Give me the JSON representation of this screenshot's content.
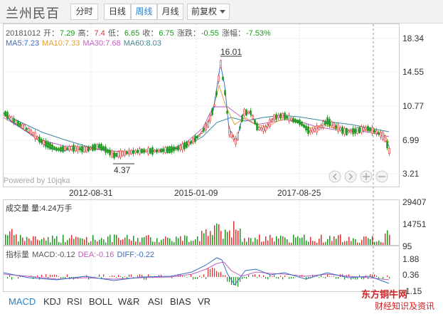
{
  "header": {
    "stock_name": "兰州民百",
    "periods": [
      {
        "label": "分时",
        "active": false
      },
      {
        "label": "日线",
        "active": false
      },
      {
        "label": "周线",
        "active": true
      },
      {
        "label": "月线",
        "active": false
      }
    ],
    "adjust_label": "前复权"
  },
  "quote": {
    "date": "20181012",
    "open_label": "开：",
    "open": "7.29",
    "high_label": "高：",
    "high": "7.4",
    "low_label": "低：",
    "low": "6.65",
    "close_label": "收：",
    "close": "6.75",
    "change_label": "涨跌：",
    "change": "-0.55",
    "pct_label": "涨幅：",
    "pct": "-7.53%"
  },
  "ma": {
    "ma5": "MA5:7.23",
    "ma10": "MA10:7.33",
    "ma30": "MA30:7.68",
    "ma60": "MA60:8.03"
  },
  "price_axis": [
    "18.34",
    "14.55",
    "10.77",
    "6.99",
    "3.21"
  ],
  "annotations": {
    "max": "16.01",
    "min": "4.37"
  },
  "date_axis": [
    "2012-08-31",
    "2015-01-09",
    "2017-08-25"
  ],
  "powered_by": "Powered by 10jqka",
  "volume": {
    "label": "成交量 量:4.24万手",
    "axis": [
      "29407",
      "14751",
      "95"
    ]
  },
  "macd": {
    "label_prefix": "指标量 ",
    "macd": "MACD:-0.12",
    "dea": "DEA:-0.16",
    "diff": "DIFF:-0.22",
    "axis": [
      "1.88",
      "0.36",
      "-1.15"
    ]
  },
  "tabs": [
    "MACD",
    "KDJ",
    "RSI",
    "BOLL",
    "W&R",
    "ASI",
    "BIAS",
    "VR"
  ],
  "watermark": {
    "line1": "东方铜牛网",
    "line2": "财经知识及资讯"
  },
  "colors": {
    "up": "#e03030",
    "down": "#1a9a1a",
    "ma5": "#3a6fc2",
    "ma10": "#e0a030",
    "ma30": "#c060c0",
    "ma60": "#3a8a9a"
  }
}
